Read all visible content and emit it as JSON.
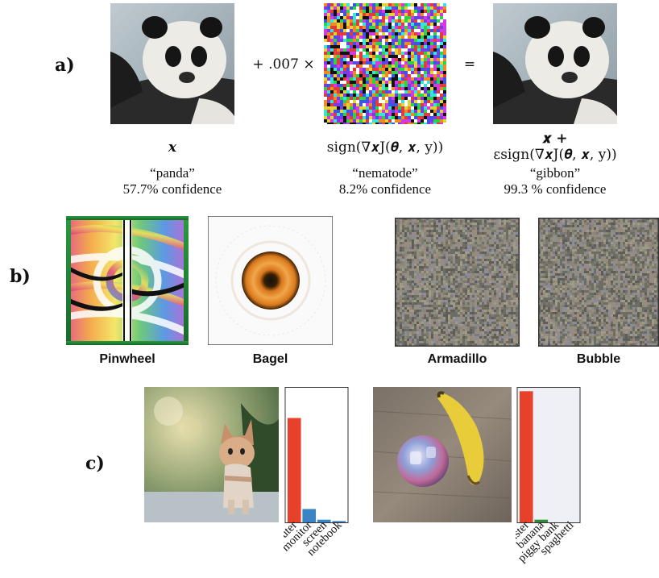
{
  "panel_a": {
    "label": "a)",
    "op_text": "+ .007 ×",
    "eq_text": "=",
    "columns": [
      {
        "math": "𝒙",
        "class_label": "“panda”",
        "confidence": "57.7% confidence"
      },
      {
        "math": "sign(∇𝒙J(𝜽, 𝒙, y))",
        "class_label": "“nematode”",
        "confidence": "8.2% confidence"
      },
      {
        "math_line1": "𝒙 +",
        "math_line2": "εsign(∇𝒙J(𝜽, 𝒙, y))",
        "class_label": "“gibbon”",
        "confidence": "99.3 % confidence"
      }
    ]
  },
  "panel_b": {
    "label": "b)",
    "captions": [
      "Pinwheel",
      "Bagel",
      "Armadillo",
      "Bubble"
    ]
  },
  "panel_c": {
    "label": "c)",
    "colors": {
      "top": "#e8412b",
      "rest": "#3a84c5",
      "second": "#2f8a3a"
    },
    "chart_data": [
      {
        "type": "bar",
        "categories": [
          "computer",
          "monitor",
          "screen",
          "notebook"
        ],
        "values": [
          0.78,
          0.1,
          0.02,
          0.01
        ],
        "ylim": [
          0,
          1
        ]
      },
      {
        "type": "bar",
        "categories": [
          "toaster",
          "banana",
          "piggy bank",
          "spaghetti"
        ],
        "values": [
          0.98,
          0.02,
          0.0,
          0.0
        ],
        "ylim": [
          0,
          1
        ]
      }
    ]
  }
}
